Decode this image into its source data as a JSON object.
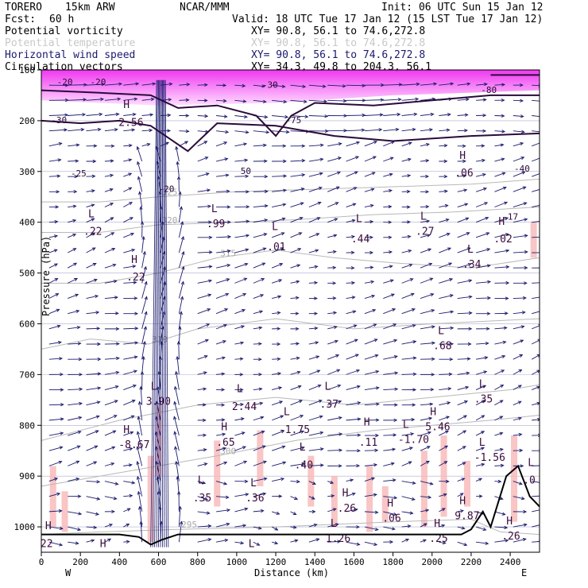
{
  "header": {
    "model": "TORERO",
    "resolution": "15km ARW",
    "org": "NCAR/MMM",
    "init": "Init: 06 UTC Sun 15 Jan 12",
    "fcst_label": "Fcst:",
    "fcst_value": "60 h",
    "valid": "Valid: 18 UTC Tue 17 Jan 12 (15 LST Tue 17 Jan 12)"
  },
  "fields": [
    {
      "name": "Potential vorticity",
      "xy": "XY=  90.8, 56.1 to  74.6,272.8",
      "color": "#000000"
    },
    {
      "name": "Potential temperature",
      "xy": "XY=  90.8, 56.1 to  74.6,272.8",
      "color": "#c8c8c8"
    },
    {
      "name": "Horizontal wind speed",
      "xy": "XY=  90.8, 56.1 to  74.6,272.8",
      "color": "#1a1a6e"
    },
    {
      "name": "Circulation vectors",
      "xy": "XY=  34.3, 49.8 to 204.3, 56.1",
      "color": "#000000"
    }
  ],
  "chart_data": {
    "type": "vertical cross-section",
    "xlabel": "Distance (km)",
    "ylabel": "Pressure (hPa)",
    "xlim": [
      0,
      2550
    ],
    "ylim": [
      1050,
      100
    ],
    "x_ticks": [
      0,
      200,
      400,
      600,
      800,
      1000,
      1200,
      1400,
      1600,
      1800,
      2000,
      2200,
      2400
    ],
    "y_ticks": [
      100,
      200,
      300,
      400,
      500,
      600,
      700,
      800,
      900,
      1000
    ],
    "x_tick_labels": [
      "0",
      "200",
      "400",
      "600",
      "800",
      "1000",
      "1200",
      "1400",
      "1600",
      "1800",
      "2000",
      "2200",
      "2400"
    ],
    "y_tick_labels": [
      "100",
      "200",
      "300",
      "400",
      "500",
      "600",
      "700",
      "800",
      "900",
      "1000"
    ],
    "west_label": "W",
    "east_label": "E",
    "theta_contours": [
      {
        "value": 295,
        "label": "295",
        "points": [
          [
            0,
            1015
          ],
          [
            300,
            1010
          ],
          [
            700,
            1005
          ],
          [
            1200,
            1000
          ],
          [
            1800,
            990
          ],
          [
            2200,
            985
          ],
          [
            2350,
            1010
          ],
          [
            2550,
            1015
          ]
        ]
      },
      {
        "value": 300,
        "label": "300",
        "points": [
          [
            0,
            920
          ],
          [
            300,
            900
          ],
          [
            600,
            880
          ],
          [
            900,
            860
          ],
          [
            1300,
            830
          ],
          [
            1700,
            810
          ],
          [
            2000,
            800
          ],
          [
            2300,
            790
          ],
          [
            2550,
            780
          ]
        ]
      },
      {
        "value": 305,
        "label": "",
        "points": [
          [
            0,
            830
          ],
          [
            400,
            790
          ],
          [
            800,
            760
          ],
          [
            1200,
            745
          ],
          [
            1600,
            760
          ],
          [
            2000,
            745
          ],
          [
            2400,
            730
          ],
          [
            2550,
            720
          ]
        ]
      },
      {
        "value": 310,
        "label": "310",
        "points": [
          [
            0,
            650
          ],
          [
            250,
            630
          ],
          [
            550,
            640
          ],
          [
            800,
            610
          ],
          [
            1200,
            590
          ],
          [
            1600,
            610
          ],
          [
            2000,
            600
          ],
          [
            2550,
            590
          ]
        ]
      },
      {
        "value": 315,
        "label": "315",
        "points": [
          [
            0,
            520
          ],
          [
            300,
            520
          ],
          [
            600,
            500
          ],
          [
            900,
            470
          ],
          [
            1200,
            455
          ],
          [
            1500,
            470
          ],
          [
            1800,
            480
          ],
          [
            2200,
            490
          ],
          [
            2550,
            470
          ]
        ]
      },
      {
        "value": 320,
        "label": "320",
        "points": [
          [
            0,
            420
          ],
          [
            300,
            420
          ],
          [
            600,
            405
          ],
          [
            1000,
            400
          ],
          [
            1300,
            395
          ],
          [
            1700,
            385
          ],
          [
            2100,
            380
          ],
          [
            2550,
            370
          ]
        ]
      },
      {
        "value": 325,
        "label": "325",
        "points": [
          [
            0,
            360
          ],
          [
            300,
            360
          ],
          [
            600,
            350
          ],
          [
            1000,
            340
          ],
          [
            1400,
            335
          ],
          [
            1800,
            330
          ],
          [
            2200,
            325
          ],
          [
            2550,
            315
          ]
        ]
      }
    ],
    "pv_contours": [
      {
        "label": "2",
        "points": [
          [
            0,
            140
          ],
          [
            300,
            145
          ],
          [
            560,
            150
          ],
          [
            700,
            175
          ],
          [
            900,
            170
          ],
          [
            1100,
            190
          ],
          [
            1200,
            230
          ],
          [
            1280,
            190
          ],
          [
            1400,
            165
          ],
          [
            1700,
            170
          ],
          [
            2000,
            160
          ],
          [
            2300,
            150
          ],
          [
            2550,
            150
          ]
        ]
      },
      {
        "label": "",
        "points": [
          [
            0,
            200
          ],
          [
            200,
            205
          ],
          [
            400,
            200
          ],
          [
            560,
            210
          ],
          [
            750,
            260
          ],
          [
            900,
            205
          ],
          [
            1200,
            210
          ],
          [
            1500,
            230
          ],
          [
            1800,
            240
          ],
          [
            2200,
            230
          ],
          [
            2550,
            225
          ]
        ]
      },
      {
        "label": "",
        "points": [
          [
            2300,
            110
          ],
          [
            2550,
            110
          ]
        ]
      }
    ],
    "pv_labels": [
      {
        "text": "-20",
        "x": 80,
        "y": 130
      },
      {
        "text": "-20",
        "x": 250,
        "y": 130
      },
      {
        "text": "-30",
        "x": 1130,
        "y": 135
      },
      {
        "text": "-30",
        "x": 50,
        "y": 205
      },
      {
        "text": "-25",
        "x": 150,
        "y": 310
      },
      {
        "text": "-20",
        "x": 600,
        "y": 340
      },
      {
        "text": "-75",
        "x": 1250,
        "y": 205
      },
      {
        "text": "50",
        "x": 1020,
        "y": 305
      },
      {
        "text": "-40",
        "x": 2420,
        "y": 300
      },
      {
        "text": "-17",
        "x": 2360,
        "y": 395
      },
      {
        "text": "-80",
        "x": 2250,
        "y": 145
      }
    ],
    "h_l_markers": [
      {
        "kind": "H",
        "value": "2.56",
        "x": 420,
        "y": 175,
        "vy": 210
      },
      {
        "kind": "L",
        "value": ".22",
        "x": 240,
        "y": 390,
        "vy": 425
      },
      {
        "kind": "H",
        "value": ".22",
        "x": 460,
        "y": 480,
        "vy": 515
      },
      {
        "kind": "L",
        "value": ".01",
        "x": 1180,
        "y": 415,
        "vy": 455
      },
      {
        "kind": "L",
        "value": ".44",
        "x": 1610,
        "y": 400,
        "vy": 440
      },
      {
        "kind": "L",
        "value": ".27",
        "x": 1940,
        "y": 395,
        "vy": 425
      },
      {
        "kind": "L",
        "value": ".34",
        "x": 2180,
        "y": 460,
        "vy": 490
      },
      {
        "kind": "H",
        "value": ".02",
        "x": 2340,
        "y": 405,
        "vy": 440
      },
      {
        "kind": "L",
        "value": ".68",
        "x": 2030,
        "y": 620,
        "vy": 650
      },
      {
        "kind": "L",
        "value": ".99",
        "x": 870,
        "y": 380,
        "vy": 410
      },
      {
        "kind": "H",
        "value": ".06",
        "x": 2140,
        "y": 275,
        "vy": 310
      },
      {
        "kind": "L",
        "value": ".35",
        "x": 2240,
        "y": 725,
        "vy": 755
      },
      {
        "kind": "H",
        "value": "5.46",
        "x": 1990,
        "y": 780,
        "vy": 810
      },
      {
        "kind": "L",
        "value": "-1.70",
        "x": 1850,
        "y": 805,
        "vy": 835
      },
      {
        "kind": "L",
        "value": "-1.56",
        "x": 2240,
        "y": 840,
        "vy": 870
      },
      {
        "kind": "H",
        "value": "-8.67",
        "x": 420,
        "y": 815,
        "vy": 845
      },
      {
        "kind": "L",
        "value": "3.90",
        "x": 560,
        "y": 730,
        "vy": 760
      },
      {
        "kind": "L",
        "value": "2.44",
        "x": 1000,
        "y": 735,
        "vy": 770
      },
      {
        "kind": "H",
        "value": ".65",
        "x": 920,
        "y": 810,
        "vy": 840
      },
      {
        "kind": "L",
        "value": "-1.75",
        "x": 1240,
        "y": 780,
        "vy": 815
      },
      {
        "kind": "L",
        "value": ".37",
        "x": 1450,
        "y": 730,
        "vy": 765
      },
      {
        "kind": "H",
        "value": ".11",
        "x": 1650,
        "y": 800,
        "vy": 840
      },
      {
        "kind": "L",
        "value": ".40",
        "x": 1320,
        "y": 850,
        "vy": 885
      },
      {
        "kind": "L",
        "value": ".35",
        "x": 800,
        "y": 915,
        "vy": 950
      },
      {
        "kind": "L",
        "value": ".36",
        "x": 1070,
        "y": 920,
        "vy": 950
      },
      {
        "kind": "H",
        "value": ".26",
        "x": 1540,
        "y": 940,
        "vy": 970
      },
      {
        "kind": "H",
        "value": ".06",
        "x": 1770,
        "y": 960,
        "vy": 990
      },
      {
        "kind": "H",
        "value": "9.87",
        "x": 2140,
        "y": 955,
        "vy": 985
      },
      {
        "kind": "H",
        "value": ".26",
        "x": 2380,
        "y": 995,
        "vy": 1025
      },
      {
        "kind": "H",
        "value": "22",
        "x": 20,
        "y": 1005,
        "vy": 1040
      },
      {
        "kind": "H",
        "value": "4.8",
        "x": 300,
        "y": 1040,
        "vy": 1075
      },
      {
        "kind": "L",
        "value": "7.76",
        "x": 1060,
        "y": 1040,
        "vy": 1070
      },
      {
        "kind": "L",
        "value": "1.26",
        "x": 1480,
        "y": 1000,
        "vy": 1030
      },
      {
        "kind": "H",
        "value": ".25",
        "x": 2010,
        "y": 1000,
        "vy": 1030
      },
      {
        "kind": "L",
        "value": ".0",
        "x": 2490,
        "y": 880,
        "vy": 915
      }
    ],
    "wind_maxima_band": [
      [
        0,
        100
      ],
      [
        2550,
        100
      ],
      [
        2550,
        140
      ],
      [
        1800,
        150
      ],
      [
        1200,
        165
      ],
      [
        600,
        170
      ],
      [
        0,
        160
      ]
    ],
    "terrain": [
      [
        0,
        1015
      ],
      [
        400,
        1015
      ],
      [
        500,
        1020
      ],
      [
        560,
        1035
      ],
      [
        620,
        1025
      ],
      [
        700,
        1015
      ],
      [
        1200,
        1015
      ],
      [
        1800,
        1015
      ],
      [
        2150,
        1015
      ],
      [
        2200,
        1005
      ],
      [
        2260,
        970
      ],
      [
        2300,
        1000
      ],
      [
        2380,
        900
      ],
      [
        2440,
        880
      ],
      [
        2500,
        940
      ],
      [
        2550,
        960
      ]
    ]
  }
}
